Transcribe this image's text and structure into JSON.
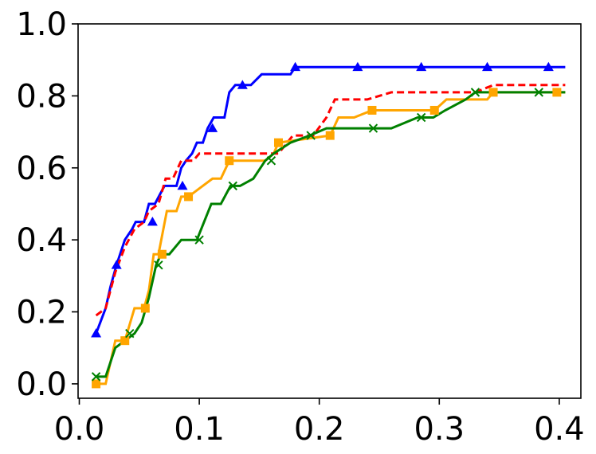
{
  "chart_data": {
    "type": "line",
    "title": "",
    "xlabel": "",
    "ylabel": "",
    "xlim": [
      -0.001,
      0.418
    ],
    "ylim": [
      -0.04,
      1.0
    ],
    "x_ticks": [
      0.0,
      0.1,
      0.2,
      0.3,
      0.4
    ],
    "x_tick_labels": [
      "0.0",
      "0.1",
      "0.2",
      "0.3",
      "0.4"
    ],
    "y_ticks": [
      0.0,
      0.2,
      0.4,
      0.6,
      0.8,
      1.0
    ],
    "y_tick_labels": [
      "0.0",
      "0.2",
      "0.4",
      "0.6",
      "0.8",
      "1.0"
    ],
    "grid": false,
    "legend": "none",
    "series": [
      {
        "color": "#0000ff",
        "line_style": "solid",
        "marker": "triangle",
        "x": [
          0.014,
          0.022,
          0.026,
          0.031,
          0.034,
          0.038,
          0.044,
          0.047,
          0.054,
          0.058,
          0.063,
          0.071,
          0.081,
          0.085,
          0.089,
          0.094,
          0.098,
          0.103,
          0.107,
          0.112,
          0.121,
          0.125,
          0.13,
          0.136,
          0.143,
          0.152,
          0.17,
          0.176,
          0.18,
          0.232,
          0.285,
          0.34,
          0.391,
          0.405
        ],
        "y": [
          0.14,
          0.21,
          0.27,
          0.33,
          0.36,
          0.4,
          0.43,
          0.45,
          0.45,
          0.5,
          0.5,
          0.55,
          0.55,
          0.6,
          0.62,
          0.64,
          0.67,
          0.67,
          0.71,
          0.74,
          0.74,
          0.81,
          0.83,
          0.83,
          0.83,
          0.86,
          0.86,
          0.86,
          0.88,
          0.88,
          0.88,
          0.88,
          0.88,
          0.88
        ],
        "marker_x": [
          0.014,
          0.031,
          0.061,
          0.086,
          0.111,
          0.136,
          0.18,
          0.232,
          0.285,
          0.34,
          0.391
        ],
        "marker_y": [
          0.14,
          0.33,
          0.45,
          0.55,
          0.71,
          0.83,
          0.88,
          0.88,
          0.88,
          0.88,
          0.88
        ]
      },
      {
        "color": "#ff0000",
        "line_style": "dashed",
        "marker": "none",
        "x": [
          0.014,
          0.022,
          0.03,
          0.038,
          0.046,
          0.054,
          0.058,
          0.066,
          0.072,
          0.078,
          0.085,
          0.095,
          0.1,
          0.166,
          0.178,
          0.195,
          0.206,
          0.213,
          0.24,
          0.26,
          0.33,
          0.345,
          0.405
        ],
        "y": [
          0.19,
          0.21,
          0.31,
          0.38,
          0.43,
          0.45,
          0.48,
          0.5,
          0.57,
          0.57,
          0.62,
          0.62,
          0.64,
          0.64,
          0.69,
          0.69,
          0.74,
          0.79,
          0.79,
          0.81,
          0.81,
          0.83,
          0.83
        ]
      },
      {
        "color": "#ffa500",
        "line_style": "solid",
        "marker": "square",
        "x": [
          0.014,
          0.022,
          0.03,
          0.038,
          0.046,
          0.054,
          0.058,
          0.062,
          0.066,
          0.073,
          0.081,
          0.085,
          0.091,
          0.111,
          0.118,
          0.125,
          0.155,
          0.162,
          0.166,
          0.209,
          0.216,
          0.229,
          0.244,
          0.296,
          0.306,
          0.34,
          0.345,
          0.398,
          0.405
        ],
        "y": [
          0.0,
          0.0,
          0.12,
          0.12,
          0.21,
          0.21,
          0.26,
          0.36,
          0.36,
          0.48,
          0.48,
          0.52,
          0.52,
          0.57,
          0.57,
          0.62,
          0.62,
          0.64,
          0.67,
          0.69,
          0.74,
          0.74,
          0.76,
          0.76,
          0.79,
          0.79,
          0.81,
          0.81,
          0.81
        ],
        "marker_x": [
          0.014,
          0.038,
          0.055,
          0.069,
          0.091,
          0.125,
          0.166,
          0.209,
          0.244,
          0.296,
          0.345,
          0.398
        ],
        "marker_y": [
          0.0,
          0.12,
          0.21,
          0.36,
          0.52,
          0.62,
          0.67,
          0.69,
          0.76,
          0.76,
          0.81,
          0.81
        ]
      },
      {
        "color": "#008000",
        "line_style": "solid",
        "marker": "x",
        "x": [
          0.014,
          0.022,
          0.03,
          0.038,
          0.046,
          0.052,
          0.058,
          0.064,
          0.068,
          0.075,
          0.085,
          0.098,
          0.11,
          0.118,
          0.126,
          0.134,
          0.145,
          0.155,
          0.162,
          0.176,
          0.192,
          0.206,
          0.214,
          0.245,
          0.26,
          0.282,
          0.295,
          0.305,
          0.322,
          0.33,
          0.383,
          0.405
        ],
        "y": [
          0.02,
          0.02,
          0.1,
          0.12,
          0.14,
          0.17,
          0.24,
          0.33,
          0.36,
          0.36,
          0.4,
          0.4,
          0.5,
          0.5,
          0.55,
          0.55,
          0.57,
          0.62,
          0.64,
          0.67,
          0.69,
          0.71,
          0.71,
          0.71,
          0.71,
          0.74,
          0.74,
          0.76,
          0.79,
          0.81,
          0.81,
          0.81
        ],
        "marker_x": [
          0.014,
          0.042,
          0.066,
          0.1,
          0.128,
          0.16,
          0.193,
          0.245,
          0.285,
          0.33,
          0.383
        ],
        "marker_y": [
          0.02,
          0.14,
          0.33,
          0.4,
          0.55,
          0.62,
          0.69,
          0.71,
          0.74,
          0.81,
          0.81
        ]
      }
    ]
  }
}
